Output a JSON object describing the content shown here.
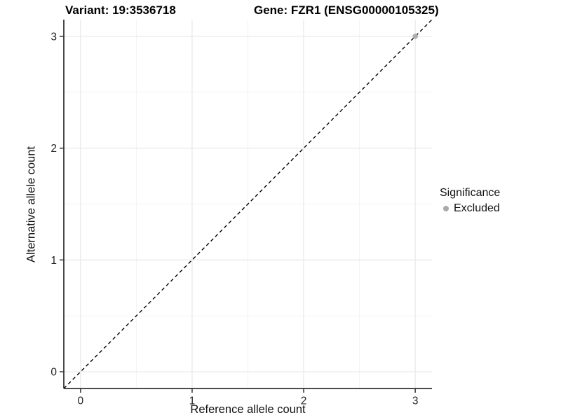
{
  "header": {
    "variant_title": "Variant: 19:3536718",
    "gene_title": "Gene: FZR1 (ENSG00000105325)"
  },
  "chart_data": {
    "type": "scatter",
    "xlabel": "Reference allele count",
    "ylabel": "Alternative allele count",
    "xlim": [
      0,
      3
    ],
    "ylim": [
      0,
      3
    ],
    "x_ticks": [
      0,
      1,
      2,
      3
    ],
    "y_ticks": [
      0,
      1,
      2,
      3
    ],
    "expansion_frac": 0.05,
    "grid": "on",
    "gridline_major_color": "#e7e7e7",
    "gridline_minor_color": "#f3f3f3",
    "axis_line_color": "#333333",
    "tick_label_color": "#262626",
    "reference_line": {
      "kind": "identity",
      "style": "dashed",
      "color": "#000000"
    },
    "series": [
      {
        "name": "Excluded",
        "color": "#ababab",
        "points": [
          {
            "x": 3,
            "y": 3
          }
        ]
      }
    ],
    "legend": {
      "title": "Significance",
      "position": "right",
      "items": [
        {
          "label": "Excluded",
          "color": "#aaaaaa"
        }
      ]
    }
  }
}
